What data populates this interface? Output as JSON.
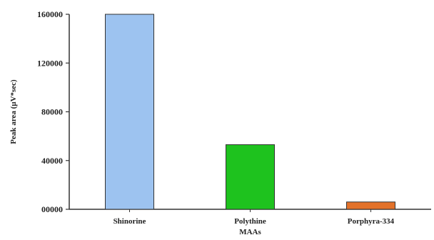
{
  "chart_data": {
    "type": "bar",
    "title": "",
    "xlabel": "",
    "ylabel": "Peak area (µV*sec)",
    "ylim": [
      0,
      160000
    ],
    "yticks": [
      0,
      40000,
      80000,
      120000,
      160000
    ],
    "ytick_labels": [
      "00000",
      "40000",
      "80000",
      "120000",
      "160000"
    ],
    "categories": [
      [
        "Shinorine"
      ],
      [
        "Polythine",
        "MAAs"
      ],
      [
        "Porphyra-334"
      ]
    ],
    "values": [
      160000,
      53000,
      6000
    ],
    "colors": [
      "#9DC3F0",
      "#1EC21E",
      "#E3722A"
    ],
    "grid": false,
    "legend": "none"
  }
}
